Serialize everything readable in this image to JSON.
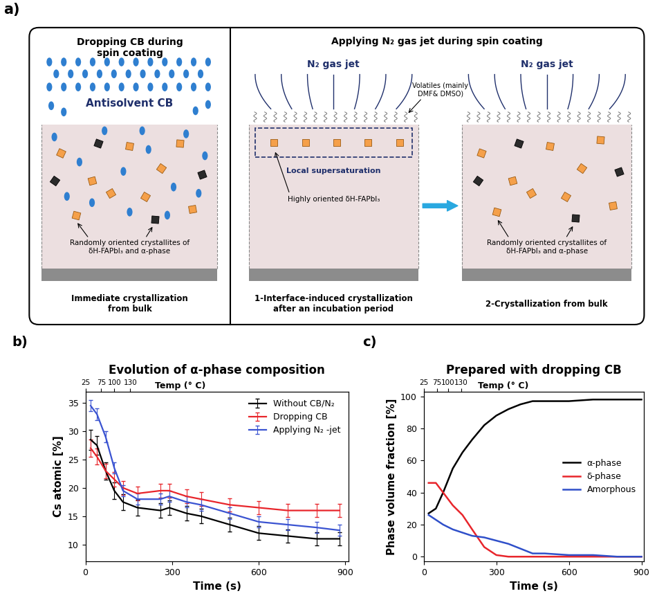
{
  "diagram": {
    "panel_label": "a)",
    "left": {
      "heading": "Dropping CB during\nspin coating",
      "antisolvent": "Antisolvent CB",
      "crystallites": "Randomly oriented crystallites of\nδH-FAPbI₃ and α-phase",
      "caption": "Immediate crystallization\nfrom bulk"
    },
    "right": {
      "heading": "Applying N₂ gas jet during spin coating",
      "gas_jet": "N₂ gas jet",
      "volatiles": "Volatiles (mainly\nDMF& DMSO)",
      "supersaturation": "Local supersaturation",
      "oriented": "Highly oriented δH-FAPbI₃",
      "crystallites": "Randomly oriented crystallites of\nδH-FAPbI₃ and α-phase",
      "step1": "1-Interface-induced crystallization\nafter an incubation period",
      "step2": "2-Crystallization from bulk"
    }
  },
  "chart_data": [
    {
      "type": "line",
      "annotation": "b)",
      "title": "Evolution of α-phase composition",
      "x_label": "Time (s)",
      "y_label": "Cs atomic [%]",
      "x2_label": "Temp (° C)",
      "x": [
        18,
        40,
        70,
        100,
        130,
        180,
        260,
        290,
        350,
        400,
        500,
        600,
        700,
        800,
        880
      ],
      "series": [
        {
          "name": "Without CB/N₂",
          "color": "#000000",
          "values": [
            28.5,
            27.5,
            23,
            19.5,
            17.5,
            16.5,
            16,
            16.5,
            15.5,
            15,
            13.5,
            12,
            11.5,
            11,
            11
          ],
          "errors": [
            1.8,
            1.6,
            1.5,
            1.5,
            1.4,
            1.4,
            1.3,
            1.3,
            1.3,
            1.3,
            1.2,
            1.2,
            1.2,
            1.2,
            1.2
          ]
        },
        {
          "name": "Dropping CB",
          "color": "#e8252b",
          "values": [
            27,
            25.5,
            23,
            21.5,
            20,
            19,
            19.5,
            19.5,
            18.5,
            18,
            17,
            16.5,
            16,
            16,
            16
          ],
          "errors": [
            1.5,
            1.4,
            1.3,
            1.3,
            1.2,
            1.2,
            1.2,
            1.2,
            1.2,
            1.2,
            1.2,
            1.2,
            1.2,
            1.2,
            1.2
          ]
        },
        {
          "name": "Applying N₂ -jet",
          "color": "#3a53d1",
          "values": [
            34.5,
            33,
            29,
            23.5,
            19.5,
            18,
            18,
            18.5,
            17.5,
            17,
            15.5,
            14,
            13.5,
            13,
            12.5
          ],
          "errors": [
            1.0,
            1.0,
            1.0,
            1.0,
            1.0,
            1.0,
            1.0,
            1.0,
            1.0,
            1.0,
            1.0,
            1.0,
            1.0,
            1.0,
            1.0
          ]
        }
      ],
      "xlim": [
        0,
        910
      ],
      "xticks": [
        0,
        300,
        600,
        900
      ],
      "ylim": [
        7,
        37
      ],
      "yticks": [
        10,
        15,
        20,
        25,
        30,
        35
      ],
      "x2lim": [
        0,
        910
      ],
      "x2ticks": [
        {
          "value": 0,
          "label": "25"
        },
        {
          "value": 55,
          "label": "75"
        },
        {
          "value": 100,
          "label": "100"
        },
        {
          "value": 155,
          "label": "130"
        }
      ],
      "legend": "upper right"
    },
    {
      "type": "line",
      "annotation": "c)",
      "title": "Prepared with dropping CB",
      "x_label": "Time (s)",
      "y_label": "Phase volume fraction [%]",
      "x2_label": "Temp (° C)",
      "x": [
        20,
        50,
        80,
        120,
        160,
        200,
        250,
        300,
        350,
        400,
        450,
        500,
        600,
        700,
        800,
        900
      ],
      "series": [
        {
          "name": "α-phase",
          "color": "#000000",
          "values": [
            27,
            30,
            40,
            55,
            65,
            73,
            82,
            88,
            92,
            95,
            97,
            97,
            97,
            98,
            98,
            98
          ]
        },
        {
          "name": "δ-phase",
          "color": "#e8252b",
          "values": [
            46,
            46,
            40,
            32,
            26,
            17,
            6,
            1,
            0,
            0,
            0,
            0,
            0,
            0,
            0,
            0
          ]
        },
        {
          "name": "Amorphous",
          "color": "#2f4fc9",
          "values": [
            26,
            23,
            20,
            17,
            15,
            13,
            12,
            10,
            8,
            5,
            2,
            2,
            1,
            1,
            0,
            0
          ]
        }
      ],
      "xlim": [
        0,
        910
      ],
      "xticks": [
        0,
        300,
        600,
        900
      ],
      "ylim": [
        -3,
        103
      ],
      "yticks": [
        0,
        20,
        40,
        60,
        80,
        100
      ],
      "x2lim": [
        0,
        910
      ],
      "x2ticks": [
        {
          "value": 0,
          "label": "25"
        },
        {
          "value": 55,
          "label": "75"
        },
        {
          "value": 100,
          "label": "100"
        },
        {
          "value": 155,
          "label": "130"
        }
      ],
      "legend": "center right"
    }
  ]
}
